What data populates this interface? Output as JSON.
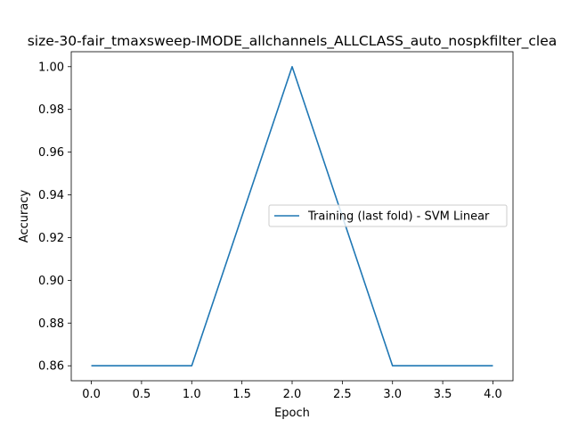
{
  "chart_data": {
    "type": "line",
    "title": "size-30-fair_tmaxsweep-IMODE_allchannels_ALLCLASS_auto_nospkfilter_clea",
    "xlabel": "Epoch",
    "ylabel": "Accuracy",
    "xlim": [
      -0.2,
      4.2
    ],
    "ylim": [
      0.853,
      1.007
    ],
    "x_ticks": [
      "0.0",
      "0.5",
      "1.0",
      "1.5",
      "2.0",
      "2.5",
      "3.0",
      "3.5",
      "4.0"
    ],
    "y_ticks": [
      "0.86",
      "0.88",
      "0.90",
      "0.92",
      "0.94",
      "0.96",
      "0.98",
      "1.00"
    ],
    "grid": false,
    "legend_position": "center-right",
    "series": [
      {
        "name": "Training (last fold) - SVM Linear",
        "color": "#1f77b4",
        "x": [
          0,
          1,
          2,
          3,
          4
        ],
        "y": [
          0.86,
          0.86,
          1.0,
          0.86,
          0.86
        ]
      }
    ]
  }
}
